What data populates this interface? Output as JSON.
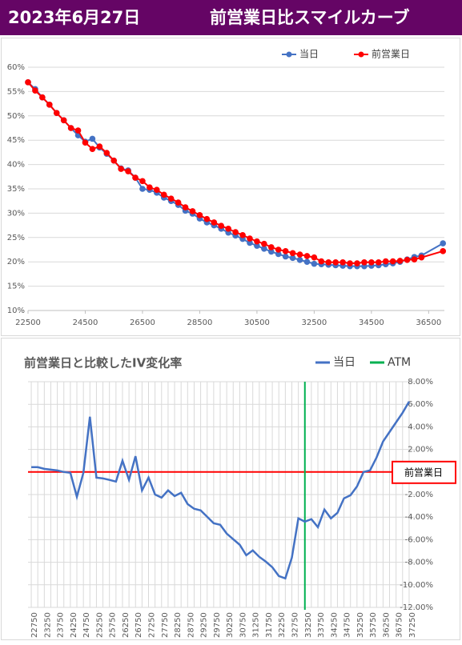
{
  "header": {
    "date": "2023年6月27日",
    "title": "前営業日比スマイルカーブ"
  },
  "chart_data": [
    {
      "type": "line",
      "x": [
        22500,
        22750,
        23000,
        23250,
        23500,
        23750,
        24000,
        24250,
        24500,
        24750,
        25000,
        25250,
        25500,
        25750,
        26000,
        26250,
        26500,
        26750,
        27000,
        27250,
        27500,
        27750,
        28000,
        28250,
        28500,
        28750,
        29000,
        29250,
        29500,
        29750,
        30000,
        30250,
        30500,
        30750,
        31000,
        31250,
        31500,
        31750,
        32000,
        32250,
        32500,
        32750,
        33000,
        33250,
        33500,
        33750,
        34000,
        34250,
        34500,
        34750,
        35000,
        35250,
        35500,
        35750,
        36000,
        36250,
        37000
      ],
      "xlim": [
        22500,
        37050
      ],
      "xticks": [
        22500,
        24500,
        26500,
        28500,
        30500,
        32500,
        34500,
        36500
      ],
      "ylim": [
        10,
        60
      ],
      "yticks": [
        {
          "value": 10,
          "label": "10%"
        },
        {
          "value": 15,
          "label": "15%"
        },
        {
          "value": 20,
          "label": "20%"
        },
        {
          "value": 25,
          "label": "25%"
        },
        {
          "value": 30,
          "label": "30%"
        },
        {
          "value": 35,
          "label": "35%"
        },
        {
          "value": 40,
          "label": "40%"
        },
        {
          "value": 45,
          "label": "45%"
        },
        {
          "value": 50,
          "label": "50%"
        },
        {
          "value": 55,
          "label": "55%"
        },
        {
          "value": 60,
          "label": "60%"
        }
      ],
      "grid": true,
      "legend": "top-right",
      "markers_on_points": true,
      "series": [
        {
          "name": "当日",
          "color": "#4472c4",
          "values": [
            56.9,
            55.5,
            53.8,
            52.3,
            50.6,
            49.1,
            47.5,
            46.0,
            44.7,
            45.3,
            43.5,
            42.2,
            40.8,
            39.2,
            38.8,
            37.3,
            35.0,
            34.8,
            34.2,
            33.2,
            32.5,
            31.7,
            30.5,
            29.9,
            28.9,
            28.1,
            27.5,
            26.8,
            26.0,
            25.4,
            24.7,
            23.9,
            23.3,
            22.7,
            22.1,
            21.6,
            21.1,
            20.8,
            20.4,
            20.0,
            19.6,
            19.5,
            19.4,
            19.3,
            19.2,
            19.1,
            19.1,
            19.1,
            19.2,
            19.3,
            19.5,
            19.7,
            20.0,
            20.5,
            21.0,
            21.3,
            23.8
          ]
        },
        {
          "name": "前営業日",
          "color": "#ff0000",
          "values": [
            56.9,
            55.2,
            53.8,
            52.3,
            50.6,
            49.1,
            47.5,
            47.0,
            44.5,
            43.2,
            43.7,
            42.4,
            40.8,
            39.1,
            38.6,
            37.3,
            36.6,
            35.3,
            34.8,
            33.8,
            33.0,
            32.2,
            31.2,
            30.4,
            29.6,
            28.8,
            28.1,
            27.4,
            26.8,
            26.1,
            25.5,
            24.8,
            24.2,
            23.7,
            23.0,
            22.5,
            22.2,
            21.8,
            21.5,
            21.2,
            20.9,
            20.1,
            19.9,
            19.9,
            19.9,
            19.7,
            19.7,
            19.9,
            19.9,
            19.9,
            20.1,
            20.1,
            20.2,
            20.4,
            20.5,
            20.9,
            22.2
          ]
        }
      ]
    },
    {
      "type": "line",
      "title": "前営業日と比較したIV変化率",
      "categories": [
        "22750",
        null,
        "23250",
        null,
        "23750",
        null,
        "24250",
        null,
        "24750",
        null,
        "25250",
        null,
        "25750",
        null,
        "26250",
        null,
        "26750",
        null,
        "27250",
        null,
        "27750",
        null,
        "28250",
        null,
        "28750",
        null,
        "29250",
        null,
        "29750",
        null,
        "30250",
        null,
        "30750",
        null,
        "31250",
        null,
        "31750",
        null,
        "32250",
        null,
        "32750",
        null,
        "33250",
        null,
        "33750",
        null,
        "34250",
        null,
        "34750",
        null,
        "35250",
        null,
        "35750",
        null,
        "36250",
        null,
        "36750",
        null,
        "37250"
      ],
      "ylim": [
        -12,
        8
      ],
      "yticks": [
        {
          "value": 8,
          "label": "8.00%"
        },
        {
          "value": 6,
          "label": "6.00%"
        },
        {
          "value": 4,
          "label": "4.00%"
        },
        {
          "value": 2,
          "label": "2.00%"
        },
        {
          "value": -2,
          "label": "-2.00%"
        },
        {
          "value": -4,
          "label": "-4.00%"
        },
        {
          "value": -6,
          "label": "-6.00%"
        },
        {
          "value": -8,
          "label": "-8.00%"
        },
        {
          "value": -10,
          "label": "-10.00%"
        },
        {
          "value": -12,
          "label": "-12.00%"
        }
      ],
      "yaxis_position": "right",
      "grid": true,
      "legend": "top-right",
      "series": [
        {
          "name": "当日",
          "color": "#4472c4",
          "values": [
            0.43,
            0.43,
            0.28,
            0.21,
            0.14,
            0.0,
            -0.07,
            -2.2,
            -0.07,
            4.9,
            -0.5,
            -0.57,
            -0.7,
            -0.85,
            1.0,
            -0.7,
            1.4,
            -1.63,
            -0.5,
            -2.0,
            -2.27,
            -1.63,
            -2.13,
            -1.84,
            -2.84,
            -3.26,
            -3.4,
            -3.97,
            -4.54,
            -4.68,
            -5.46,
            -5.96,
            -6.45,
            -7.38,
            -6.95,
            -7.52,
            -7.94,
            -8.44,
            -9.22,
            -9.43,
            -7.59,
            -4.11,
            -4.4,
            -4.18,
            -4.89,
            -3.33,
            -4.11,
            -3.62,
            -2.34,
            -2.06,
            -1.28,
            0.0,
            0.14,
            1.28,
            2.7,
            3.55,
            4.4,
            5.25,
            6.24
          ]
        }
      ],
      "markers": [
        {
          "name": "ATM",
          "color": "#00b050",
          "at": "33250"
        }
      ],
      "reference_line": {
        "value": 0,
        "label": "前営業日",
        "color": "#ff0000"
      }
    }
  ]
}
